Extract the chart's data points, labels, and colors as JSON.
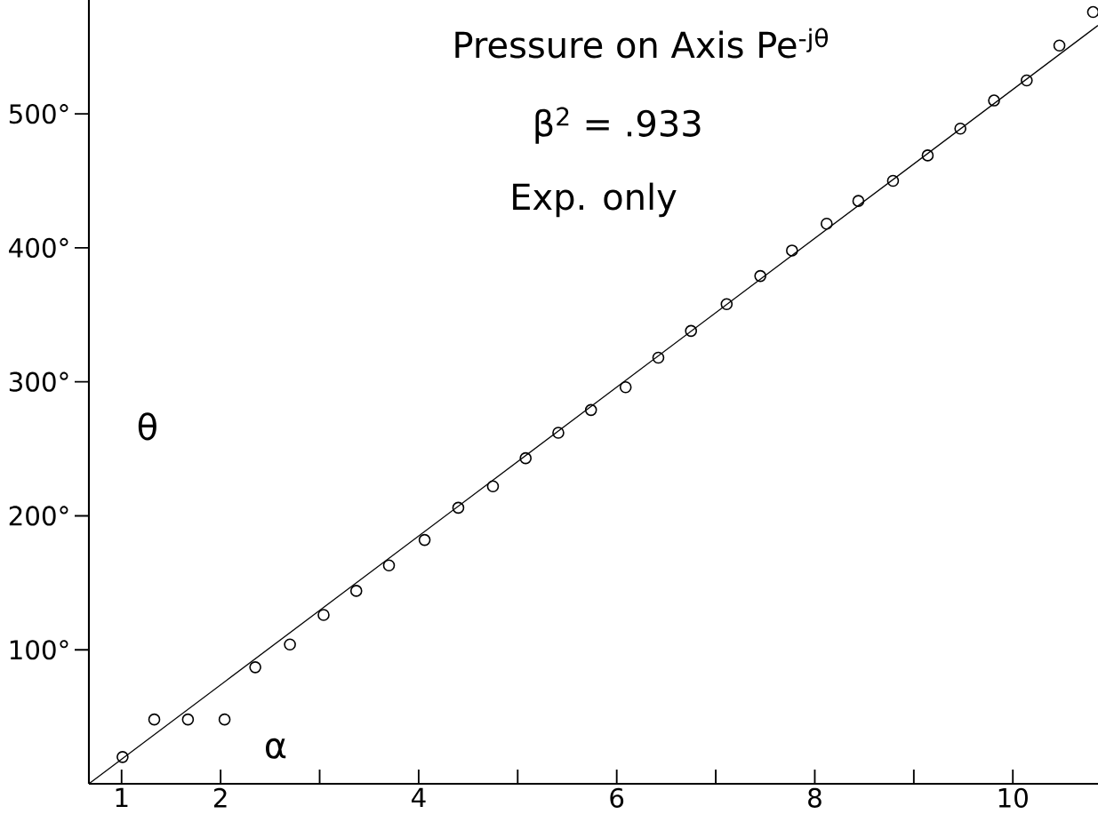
{
  "chart_data": {
    "type": "scatter",
    "title": "Pressure on Axis Pe$^{-jθ}$",
    "subtitle": "β$^{2}$ = .933",
    "annotations": [
      "Exp. only"
    ],
    "xlabel": "α",
    "ylabel": "θ",
    "xlim": [
      0.67,
      10.86
    ],
    "ylim": [
      0,
      585
    ],
    "xticks": [
      1,
      2,
      {
        "value": 3,
        "label": null
      },
      4,
      {
        "value": 5,
        "label": null
      },
      6,
      {
        "value": 7,
        "label": null
      },
      8,
      {
        "value": 9,
        "label": null
      },
      10
    ],
    "yticks": [
      {
        "value": 100,
        "label": "100°"
      },
      {
        "value": 200,
        "label": "200°"
      },
      {
        "value": 300,
        "label": "300°"
      },
      {
        "value": 400,
        "label": "400°"
      },
      {
        "value": 500,
        "label": "500°"
      }
    ],
    "series": [
      {
        "marker": "circle",
        "color": "#000000",
        "x": [
          1.01,
          1.33,
          1.67,
          2.04,
          2.35,
          2.7,
          3.04,
          3.37,
          3.7,
          4.06,
          4.4,
          4.75,
          5.08,
          5.41,
          5.74,
          6.09,
          6.42,
          6.75,
          7.11,
          7.45,
          7.77,
          8.12,
          8.44,
          8.79,
          9.14,
          9.47,
          9.81,
          10.14,
          10.47,
          10.81
        ],
        "values": [
          20,
          48,
          48,
          48,
          87,
          104,
          126,
          144,
          163,
          182,
          206,
          222,
          243,
          262,
          279,
          296,
          318,
          338,
          358,
          379,
          398,
          418,
          435,
          450,
          469,
          489,
          510,
          525,
          551,
          576
        ]
      },
      {
        "type": "line",
        "marker": "none",
        "color": "#000000",
        "x": [
          0.67,
          10.86
        ],
        "values": [
          0,
          566
        ]
      }
    ]
  }
}
